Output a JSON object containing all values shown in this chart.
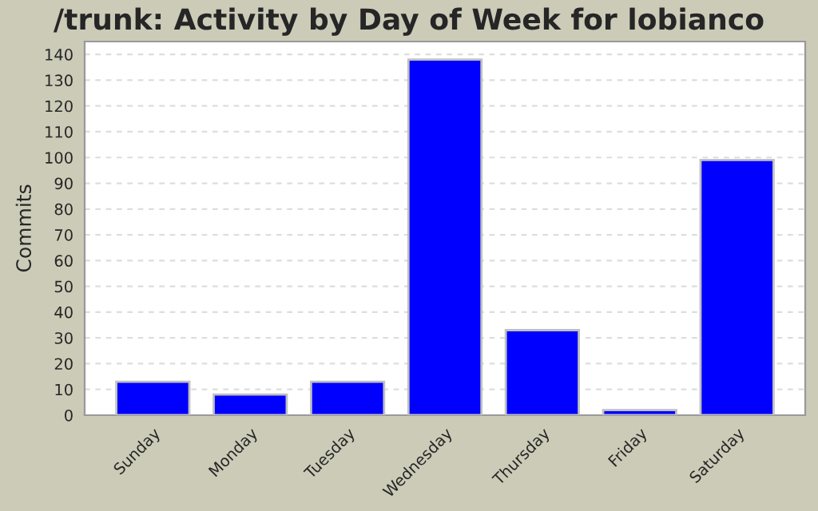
{
  "chart_data": {
    "type": "bar",
    "title": "/trunk: Activity by Day of Week for lobianco",
    "ylabel": "Commits",
    "categories": [
      "Sunday",
      "Monday",
      "Tuesday",
      "Wednesday",
      "Thursday",
      "Friday",
      "Saturday"
    ],
    "values": [
      13,
      8,
      13,
      138,
      33,
      2,
      99
    ],
    "color": "#0000ff",
    "ylim": [
      0,
      145
    ],
    "yticks": [
      0,
      10,
      20,
      30,
      40,
      50,
      60,
      70,
      80,
      90,
      100,
      110,
      120,
      130,
      140
    ],
    "grid": "y"
  }
}
